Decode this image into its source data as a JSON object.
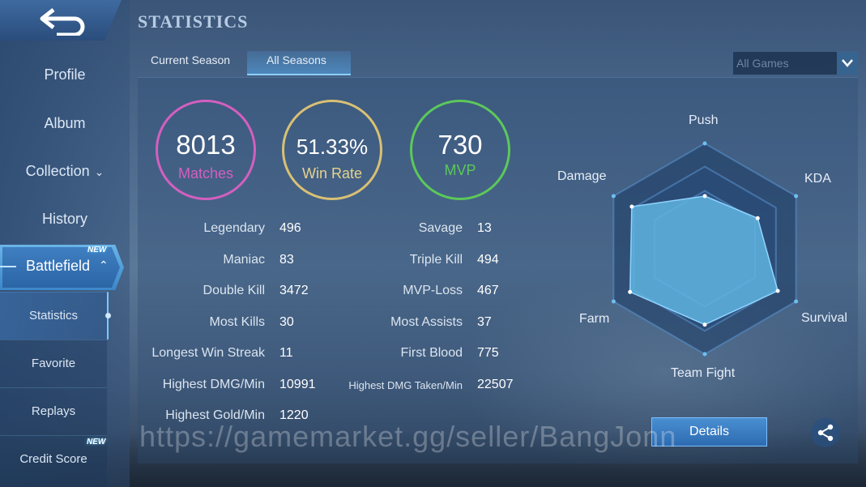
{
  "header": {
    "title": "STATISTICS"
  },
  "sidebar": {
    "back_icon": "back-arrow-icon",
    "items": [
      {
        "label": "Profile"
      },
      {
        "label": "Album"
      },
      {
        "label": "Collection"
      },
      {
        "label": "History"
      },
      {
        "label": "Battlefield"
      }
    ],
    "new_badge": "NEW",
    "sub_items": [
      {
        "label": "Statistics"
      },
      {
        "label": "Favorite"
      },
      {
        "label": "Replays"
      },
      {
        "label": "Credit Score"
      }
    ]
  },
  "tabs": [
    {
      "label": "Current Season"
    },
    {
      "label": "All Seasons"
    }
  ],
  "filter": {
    "selected": "All Games"
  },
  "summary": [
    {
      "value": "8013",
      "caption": "Matches",
      "color": "#d45fc0"
    },
    {
      "value": "51.33%",
      "caption": "Win Rate",
      "color": "#d9c074"
    },
    {
      "value": "730",
      "caption": "MVP",
      "color": "#5cc85a"
    }
  ],
  "stats_left": [
    {
      "label": "Legendary",
      "value": "496"
    },
    {
      "label": "Maniac",
      "value": "83"
    },
    {
      "label": "Double Kill",
      "value": "3472"
    },
    {
      "label": "Most Kills",
      "value": "30"
    },
    {
      "label": "Longest Win Streak",
      "value": "11"
    },
    {
      "label": "Highest DMG/Min",
      "value": "10991"
    },
    {
      "label": "Highest Gold/Min",
      "value": "1220"
    }
  ],
  "stats_right": [
    {
      "label": "Savage",
      "value": "13"
    },
    {
      "label": "Triple Kill",
      "value": "494"
    },
    {
      "label": "MVP-Loss",
      "value": "467"
    },
    {
      "label": "Most Assists",
      "value": "37"
    },
    {
      "label": "First Blood",
      "value": "775"
    },
    {
      "label": "Highest DMG Taken/Min",
      "value": "22507"
    }
  ],
  "radar": {
    "axes": [
      "Push",
      "KDA",
      "Survival",
      "Team Fight",
      "Farm",
      "Damage"
    ],
    "values": [
      0.5,
      0.58,
      0.8,
      0.72,
      0.82,
      0.8
    ],
    "fill_color": "#5fb4e0"
  },
  "actions": {
    "details_label": "Details",
    "share_icon": "share-icon"
  },
  "watermark": "https://gamemarket.gg/seller/BangJonn"
}
